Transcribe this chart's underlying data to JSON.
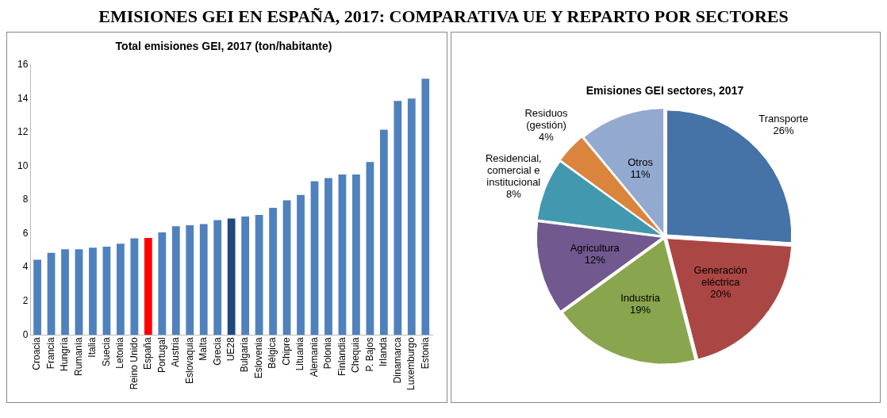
{
  "chart_data": [
    {
      "type": "bar",
      "title": "EMISIONES GEI EN ESPAÑA, 2017: COMPARATIVA UE Y REPARTO POR SECTORES",
      "subtitle": "Total emisiones GEI, 2017 (ton/habitante)",
      "categories": [
        "Croacia",
        "Francia",
        "Hungría",
        "Rumanía",
        "Italia",
        "Suecia",
        "Letonia",
        "Reino Unido",
        "España",
        "Portugal",
        "Austria",
        "Eslovaquia",
        "Malta",
        "Grecia",
        "UE28",
        "Bulgaria",
        "Eslovenia",
        "Bélgica",
        "Chipre",
        "Lituania",
        "Alemania",
        "Polonia",
        "Finlandia",
        "Chequia",
        "P. Bajos",
        "Irlanda",
        "Dinamarca",
        "Luxemburgo",
        "Estonia"
      ],
      "values": [
        4.45,
        4.87,
        5.08,
        5.08,
        5.17,
        5.23,
        5.41,
        5.72,
        5.75,
        6.08,
        6.44,
        6.5,
        6.57,
        6.8,
        6.9,
        7.02,
        7.11,
        7.53,
        7.98,
        8.29,
        9.11,
        9.29,
        9.51,
        9.51,
        10.25,
        12.16,
        13.86,
        14.0,
        15.18
      ],
      "colors": [
        "#4f81bd",
        "#4f81bd",
        "#4f81bd",
        "#4f81bd",
        "#4f81bd",
        "#4f81bd",
        "#4f81bd",
        "#4f81bd",
        "#ff0000",
        "#4f81bd",
        "#4f81bd",
        "#4f81bd",
        "#4f81bd",
        "#4f81bd",
        "#1f497d",
        "#4f81bd",
        "#4f81bd",
        "#4f81bd",
        "#4f81bd",
        "#4f81bd",
        "#4f81bd",
        "#4f81bd",
        "#4f81bd",
        "#4f81bd",
        "#4f81bd",
        "#4f81bd",
        "#4f81bd",
        "#4f81bd",
        "#4f81bd"
      ],
      "ylim": [
        0,
        16
      ],
      "yticks": [
        0,
        2,
        4,
        6,
        8,
        10,
        12,
        14,
        16
      ],
      "grid": false,
      "legend": false
    },
    {
      "type": "pie",
      "title": "Emisiones GEI sectores, 2017",
      "categories": [
        "Transporte",
        "Generación eléctrica",
        "Industria",
        "Agricultura",
        "Residencial, comercial e institucional",
        "Residuos (gestión)",
        "Otros"
      ],
      "values": [
        26,
        20,
        19,
        12,
        8,
        4,
        11
      ],
      "colors": [
        "#4572a7",
        "#aa4643",
        "#89a54e",
        "#71588f",
        "#4198af",
        "#db843d",
        "#93a9cf"
      ],
      "value_labels": [
        "26%",
        "20%",
        "19%",
        "12%",
        "8%",
        "4%",
        "11%"
      ],
      "legend": false
    }
  ]
}
